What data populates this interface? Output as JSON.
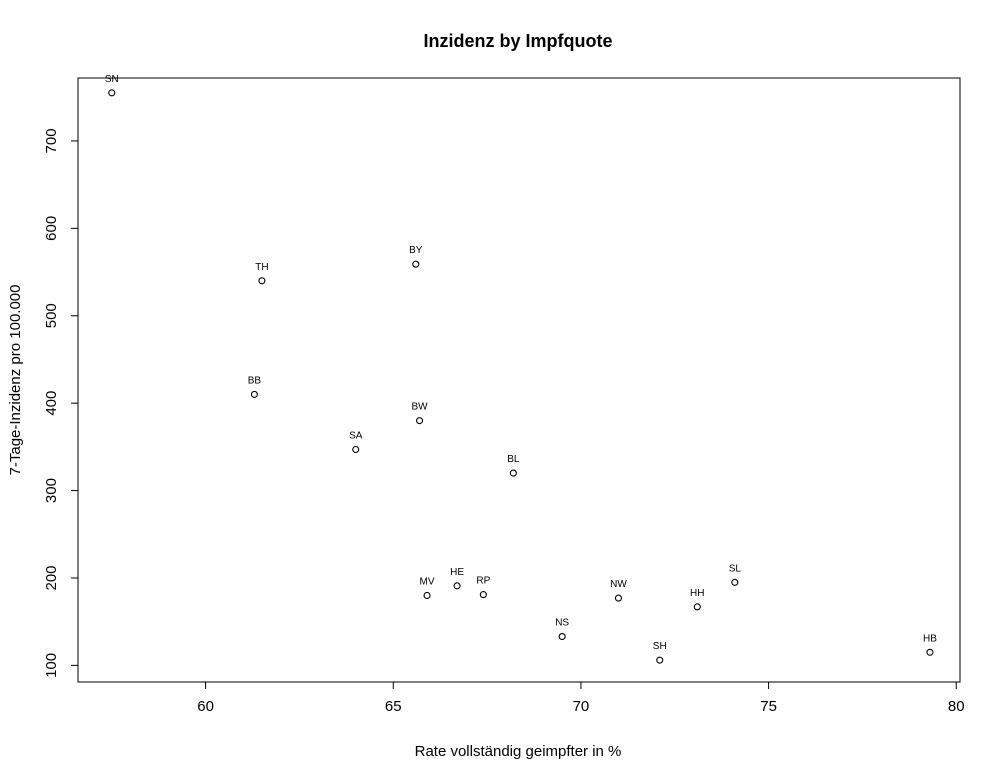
{
  "chart_data": {
    "type": "scatter",
    "title": "Inzidenz by Impfquote",
    "xlabel": "Rate vollständig geimpfter in %",
    "ylabel": "7-Tage-Inzidenz pro 100.000",
    "xlim": [
      56.6,
      80.1
    ],
    "ylim": [
      81,
      772
    ],
    "xticks": [
      60,
      65,
      70,
      75,
      80
    ],
    "yticks": [
      100,
      200,
      300,
      400,
      500,
      600,
      700
    ],
    "grid": false,
    "marker_color": "#000000",
    "points": [
      {
        "label": "SN",
        "x": 57.5,
        "y": 755
      },
      {
        "label": "TH",
        "x": 61.5,
        "y": 540
      },
      {
        "label": "BY",
        "x": 65.6,
        "y": 559
      },
      {
        "label": "BB",
        "x": 61.3,
        "y": 410
      },
      {
        "label": "BW",
        "x": 65.7,
        "y": 380
      },
      {
        "label": "SA",
        "x": 64.0,
        "y": 347
      },
      {
        "label": "BL",
        "x": 68.2,
        "y": 320
      },
      {
        "label": "MV",
        "x": 65.9,
        "y": 180
      },
      {
        "label": "HE",
        "x": 66.7,
        "y": 191
      },
      {
        "label": "RP",
        "x": 67.4,
        "y": 181
      },
      {
        "label": "NS",
        "x": 69.5,
        "y": 133
      },
      {
        "label": "NW",
        "x": 71.0,
        "y": 177
      },
      {
        "label": "SH",
        "x": 72.1,
        "y": 106
      },
      {
        "label": "HH",
        "x": 73.1,
        "y": 167
      },
      {
        "label": "SL",
        "x": 74.1,
        "y": 195
      },
      {
        "label": "HB",
        "x": 79.3,
        "y": 115
      }
    ]
  }
}
